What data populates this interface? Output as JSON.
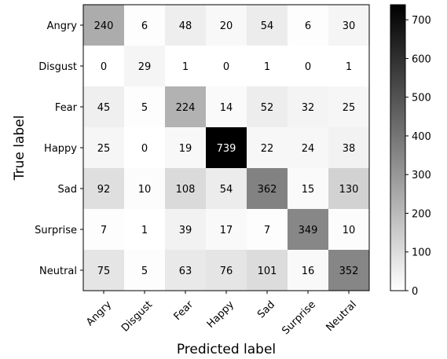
{
  "chart_data": {
    "type": "heatmap",
    "title": "",
    "xlabel": "Predicted label",
    "ylabel": "True label",
    "x_categories": [
      "Angry",
      "Disgust",
      "Fear",
      "Happy",
      "Sad",
      "Surprise",
      "Neutral"
    ],
    "y_categories": [
      "Angry",
      "Disgust",
      "Fear",
      "Happy",
      "Sad",
      "Surprise",
      "Neutral"
    ],
    "values": [
      [
        240,
        6,
        48,
        20,
        54,
        6,
        30
      ],
      [
        0,
        29,
        1,
        0,
        1,
        0,
        1
      ],
      [
        45,
        5,
        224,
        14,
        52,
        32,
        25
      ],
      [
        25,
        0,
        19,
        739,
        22,
        24,
        38
      ],
      [
        92,
        10,
        108,
        54,
        362,
        15,
        130
      ],
      [
        7,
        1,
        39,
        17,
        7,
        349,
        10
      ],
      [
        75,
        5,
        63,
        76,
        101,
        16,
        352
      ]
    ],
    "colormap": "Greys",
    "color_low": "#ffffff",
    "color_high": "#000000",
    "vmin": 0,
    "vmax": 739,
    "colorbar_ticks": [
      0,
      100,
      200,
      300,
      400,
      500,
      600,
      700
    ],
    "colorbar_tick_labels": [
      "0",
      "100",
      "200",
      "300",
      "400",
      "500",
      "600",
      "700"
    ],
    "x_tick_rotation_deg": 45,
    "grid": false
  }
}
